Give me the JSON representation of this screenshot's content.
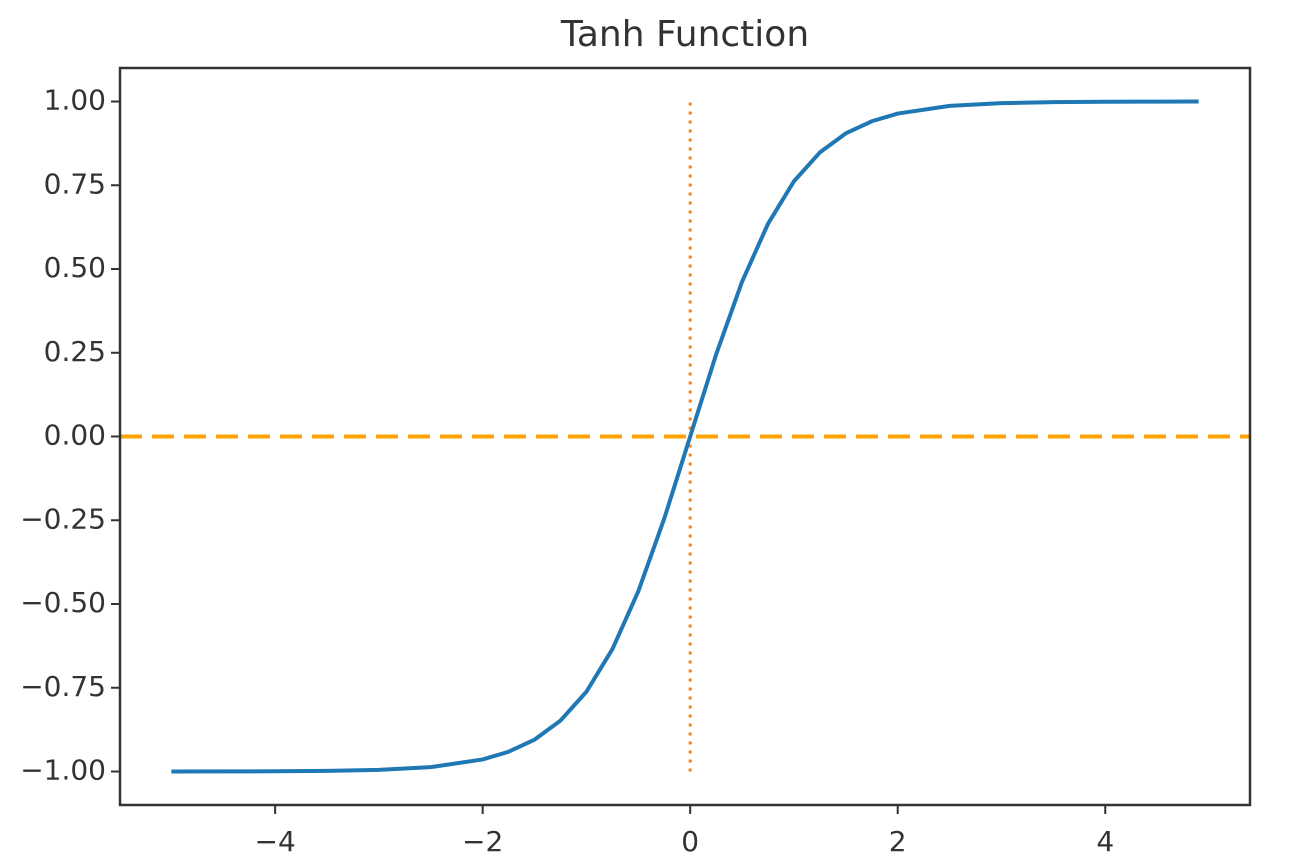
{
  "chart_data": {
    "type": "line",
    "title": "Tanh Function",
    "x": [
      -5,
      -4.5,
      -4,
      -3.5,
      -3,
      -2.5,
      -2,
      -1.75,
      -1.5,
      -1.25,
      -1,
      -0.75,
      -0.5,
      -0.25,
      0,
      0.25,
      0.5,
      0.75,
      1,
      1.25,
      1.5,
      1.75,
      2,
      2.5,
      3,
      3.5,
      4,
      4.5,
      4.9
    ],
    "series": [
      {
        "color": "#1f77b4",
        "values": [
          -0.9999,
          -0.9998,
          -0.9993,
          -0.9982,
          -0.995,
          -0.987,
          -0.964,
          -0.941,
          -0.905,
          -0.848,
          -0.762,
          -0.635,
          -0.462,
          -0.245,
          0,
          0.245,
          0.462,
          0.635,
          0.762,
          0.848,
          0.905,
          0.941,
          0.964,
          0.987,
          0.995,
          0.9982,
          0.9993,
          0.9998,
          0.9999
        ]
      }
    ],
    "hlines": [
      {
        "y": 0,
        "color": "#ffa500",
        "style": "dashed"
      }
    ],
    "vlines": [
      {
        "x": 0,
        "ymin": -1,
        "ymax": 1,
        "color": "#ff7f0e",
        "style": "dotted"
      }
    ],
    "xlim": [
      -5.495,
      5.395
    ],
    "ylim": [
      -1.1,
      1.1
    ],
    "xticks": [
      {
        "value": -4,
        "label": "−4"
      },
      {
        "value": -2,
        "label": "−2"
      },
      0,
      2,
      4
    ],
    "yticks": [
      {
        "value": -1,
        "label": "−1.00"
      },
      {
        "value": -0.75,
        "label": "−0.75"
      },
      {
        "value": -0.5,
        "label": "−0.50"
      },
      {
        "value": -0.25,
        "label": "−0.25"
      },
      {
        "value": 0,
        "label": "0.00"
      },
      {
        "value": 0.25,
        "label": "0.25"
      },
      {
        "value": 0.5,
        "label": "0.50"
      },
      {
        "value": 0.75,
        "label": "0.75"
      },
      {
        "value": 1,
        "label": "1.00"
      }
    ],
    "grid": false
  }
}
